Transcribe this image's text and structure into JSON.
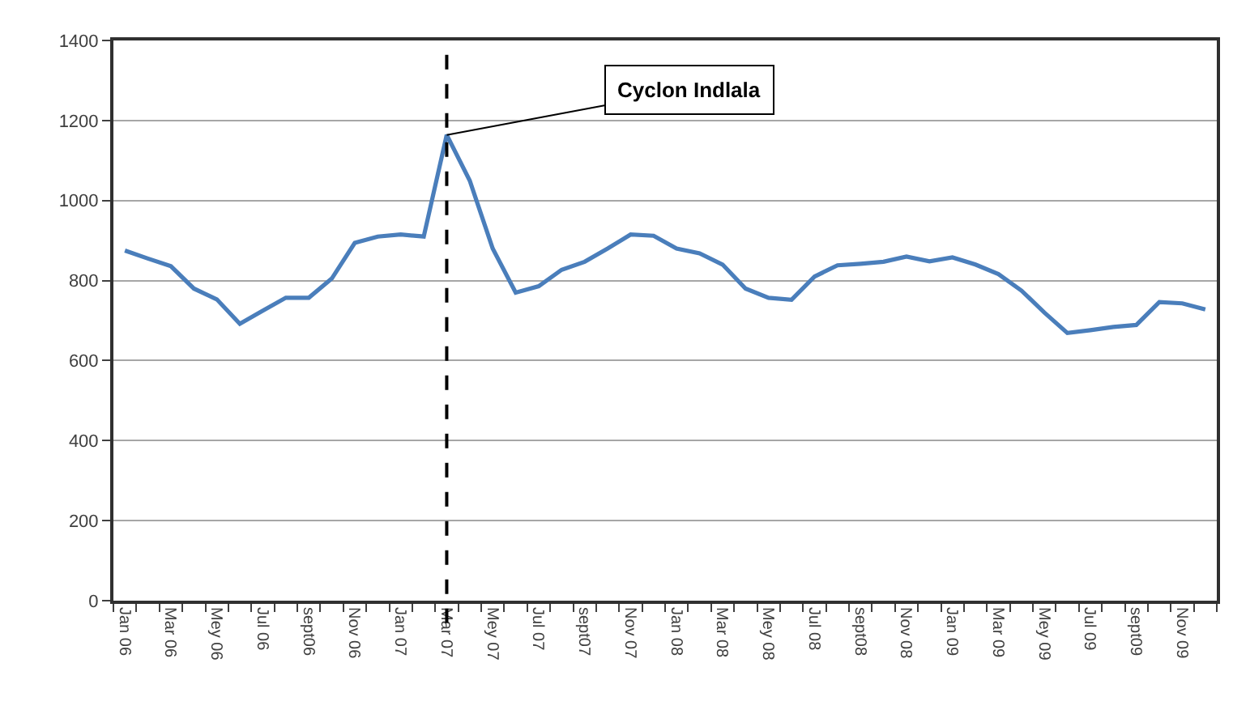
{
  "chart_data": {
    "type": "line",
    "categories": [
      "Jan 06",
      null,
      "Mar 06",
      null,
      "Mey 06",
      null,
      "Jul 06",
      null,
      "sept06",
      null,
      "Nov 06",
      null,
      "Jan 07",
      null,
      "Mar 07",
      null,
      "Mey 07",
      null,
      "Jul 07",
      null,
      "sept07",
      null,
      "Nov 07",
      null,
      "Jan 08",
      null,
      "Mar 08",
      null,
      "Mey 08",
      null,
      "Jul 08",
      null,
      "sept08",
      null,
      "Nov 08",
      null,
      "Jan 09",
      null,
      "Mar 09",
      null,
      "Mey 09",
      null,
      "Jul 09",
      null,
      "sept09",
      null,
      "Nov 09",
      null
    ],
    "series": [
      {
        "color": "#4a7ebb",
        "values": [
          875,
          855,
          836,
          780,
          753,
          692,
          725,
          757,
          757,
          805,
          894,
          910,
          915,
          910,
          1164,
          1050,
          880,
          770,
          786,
          827,
          847,
          880,
          915,
          912,
          880,
          868,
          840,
          780,
          757,
          752,
          810,
          838,
          842,
          847,
          860,
          848,
          858,
          840,
          816,
          775,
          720,
          669,
          676,
          684,
          689,
          746,
          743,
          728
        ]
      }
    ],
    "ylim": [
      0,
      1400
    ],
    "yticks": [
      0,
      200,
      400,
      600,
      800,
      1000,
      1200,
      1400
    ],
    "grid": "y",
    "marker": "none",
    "line_style": "solid",
    "ref_lines": [
      {
        "axis": "x",
        "value": "Mar 07",
        "color": "#000000",
        "line_style": "dashed"
      }
    ],
    "annotations": [
      {
        "text": "Cyclon Indlala",
        "x": "Mar 07",
        "y": 1164
      }
    ]
  }
}
